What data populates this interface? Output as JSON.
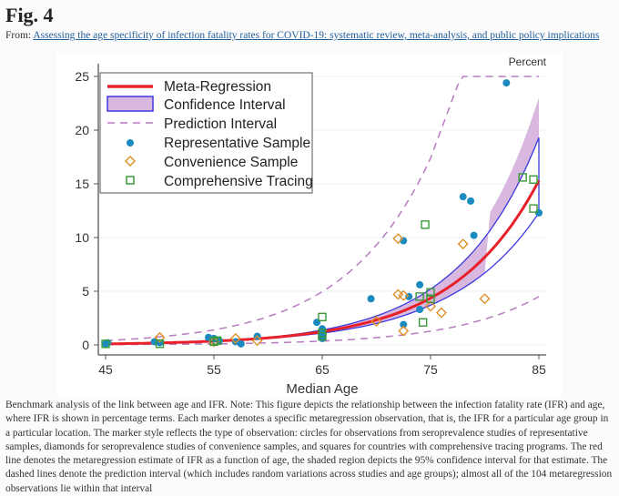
{
  "header": {
    "title": "Fig. 4",
    "from_label": "From:",
    "article_link": "Assessing the age specificity of infection fatality rates for COVID-19: systematic review, meta-analysis, and public policy implications"
  },
  "chart_data": {
    "type": "scatter",
    "title": "",
    "xlabel": "Median Age",
    "ylabel": "Percent",
    "xlim": [
      45,
      85
    ],
    "ylim": [
      0,
      25
    ],
    "xticks": [
      "45",
      "55",
      "65",
      "75",
      "85"
    ],
    "yticks": [
      "0",
      "5",
      "10",
      "15",
      "20",
      "25"
    ],
    "grid": "horizontal",
    "legend_position": "top-left",
    "legend": [
      "Meta-Regression",
      "Confidence Interval",
      "Prediction Interval",
      "Representative Sample",
      "Convenience Sample",
      "Comprehensive Tracing"
    ],
    "colors": {
      "meta": "#e8202a",
      "ci_line": "#3a3ae0",
      "ci_fill": "#d8b8de",
      "pi": "#b77bbf",
      "representative": "#1a8ac0",
      "convenience": "#e0902a",
      "tracing": "#3a9a3a"
    },
    "meta_regression": {
      "x": [
        45,
        50,
        55,
        60,
        65,
        70,
        75,
        80,
        85
      ],
      "y": [
        0.1,
        0.19,
        0.35,
        0.66,
        1.24,
        2.32,
        4.36,
        8.17,
        15.3
      ]
    },
    "confidence_interval": {
      "x": [
        45,
        50,
        55,
        60,
        65,
        70,
        75,
        80,
        85
      ],
      "lower": [
        0.09,
        0.18,
        0.33,
        0.62,
        1.1,
        2.0,
        3.7,
        6.7,
        12.3
      ],
      "upper": [
        0.11,
        0.2,
        0.37,
        0.7,
        1.4,
        2.7,
        5.2,
        10.0,
        19.3
      ]
    },
    "prediction_interval": {
      "upper": {
        "x": [
          45,
          50,
          55,
          60,
          65,
          70,
          75,
          77.8,
          80,
          85
        ],
        "y": [
          0.4,
          0.76,
          1.4,
          2.64,
          4.96,
          9.3,
          17.4,
          25,
          25,
          25
        ]
      },
      "lower": {
        "x": [
          45,
          50,
          55,
          60,
          65,
          70,
          75,
          80,
          85
        ],
        "y": [
          0.03,
          0.06,
          0.1,
          0.19,
          0.36,
          0.68,
          1.28,
          2.4,
          4.5
        ]
      }
    },
    "representative": [
      [
        45,
        0.1
      ],
      [
        45.2,
        0.2
      ],
      [
        49.5,
        0.3
      ],
      [
        50,
        0.2
      ],
      [
        54.5,
        0.7
      ],
      [
        55,
        0.6
      ],
      [
        55.5,
        0.4
      ],
      [
        57,
        0.3
      ],
      [
        57.5,
        0.1
      ],
      [
        59,
        0.8
      ],
      [
        64.5,
        2.1
      ],
      [
        65,
        1.5
      ],
      [
        65,
        0.6
      ],
      [
        65,
        1.0
      ],
      [
        69.5,
        4.3
      ],
      [
        72.5,
        9.7
      ],
      [
        73,
        4.5
      ],
      [
        74,
        5.6
      ],
      [
        74,
        3.3
      ],
      [
        72.5,
        1.9
      ],
      [
        78,
        13.8
      ],
      [
        78.7,
        13.4
      ],
      [
        79,
        10.2
      ],
      [
        82,
        24.4
      ],
      [
        85,
        12.3
      ]
    ],
    "convenience": [
      [
        50,
        0.7
      ],
      [
        55,
        0.3
      ],
      [
        57,
        0.6
      ],
      [
        59,
        0.4
      ],
      [
        70,
        2.2
      ],
      [
        72,
        9.9
      ],
      [
        72,
        4.7
      ],
      [
        72.5,
        4.6
      ],
      [
        72.5,
        1.3
      ],
      [
        75,
        3.6
      ],
      [
        76,
        3.0
      ],
      [
        78,
        9.4
      ],
      [
        80,
        4.3
      ]
    ],
    "tracing": [
      [
        45,
        0.1
      ],
      [
        50,
        0.1
      ],
      [
        55,
        0.3
      ],
      [
        55.3,
        0.4
      ],
      [
        65,
        2.6
      ],
      [
        65,
        0.8
      ],
      [
        65,
        1.1
      ],
      [
        74.5,
        11.2
      ],
      [
        74,
        4.5
      ],
      [
        75,
        4.9
      ],
      [
        75,
        4.3
      ],
      [
        74.3,
        2.1
      ],
      [
        83.5,
        15.6
      ],
      [
        84.5,
        15.4
      ],
      [
        84.5,
        12.7
      ]
    ]
  },
  "caption": "Benchmark analysis of the link between age and IFR. Note: This figure depicts the relationship between the infection fatality rate (IFR) and age, where IFR is shown in percentage terms. Each marker denotes a specific metaregression observation, that is, the IFR for a particular age group in a particular location. The marker style reflects the type of observation: circles for observations from seroprevalence studies of representative samples, diamonds for seroprevalence studies of convenience samples, and squares for countries with comprehensive tracing programs. The red line denotes the metaregression estimate of IFR as a function of age, the shaded region depicts the 95% confidence interval for that estimate. The dashed lines denote the prediction interval (which includes random variations across studies and age groups); almost all of the 104 metaregression observations lie within that interval"
}
